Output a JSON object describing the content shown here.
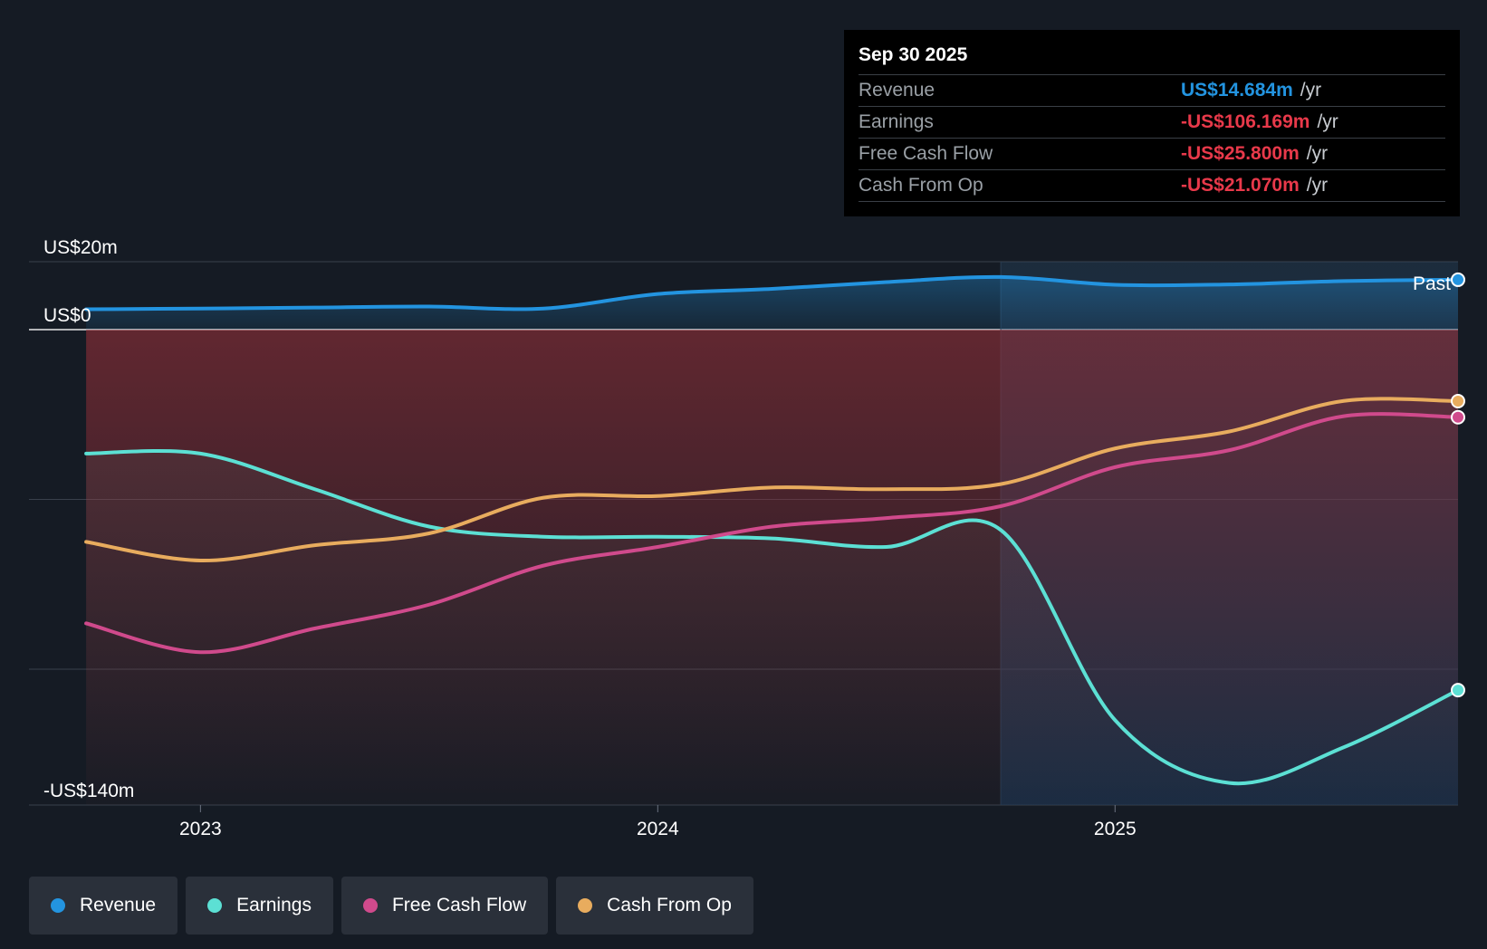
{
  "chart_data": {
    "type": "line",
    "x_unit": "year",
    "xlim": [
      2022.625,
      2025.75
    ],
    "ylim": [
      -140,
      20
    ],
    "y_tick_labels": [
      {
        "value": 20,
        "label": "US$20m"
      },
      {
        "value": 0,
        "label": "US$0"
      },
      {
        "value": -140,
        "label": "-US$140m"
      }
    ],
    "gridlines": [
      20,
      0,
      -50,
      -100,
      -140
    ],
    "x_ticks": [
      {
        "value": 2023.0,
        "label": "2023"
      },
      {
        "value": 2024.0,
        "label": "2024"
      },
      {
        "value": 2025.0,
        "label": "2025"
      }
    ],
    "past_divider_x": 2024.75,
    "past_label": "Past",
    "series": [
      {
        "name": "Revenue",
        "color": "#2394e0",
        "points": [
          [
            2022.75,
            6
          ],
          [
            2023.0,
            6.2
          ],
          [
            2023.25,
            6.5
          ],
          [
            2023.5,
            6.8
          ],
          [
            2023.75,
            6.2
          ],
          [
            2024.0,
            10.5
          ],
          [
            2024.25,
            12
          ],
          [
            2024.5,
            14
          ],
          [
            2024.75,
            15.5
          ],
          [
            2025.0,
            13.2
          ],
          [
            2025.25,
            13.3
          ],
          [
            2025.5,
            14.3
          ],
          [
            2025.75,
            14.684
          ]
        ]
      },
      {
        "name": "Earnings",
        "color": "#5ce0d4",
        "points": [
          [
            2022.75,
            -36.5
          ],
          [
            2023.0,
            -36.5
          ],
          [
            2023.25,
            -47
          ],
          [
            2023.5,
            -58
          ],
          [
            2023.75,
            -61
          ],
          [
            2024.0,
            -61
          ],
          [
            2024.25,
            -61.5
          ],
          [
            2024.5,
            -64
          ],
          [
            2024.75,
            -59
          ],
          [
            2025.0,
            -115
          ],
          [
            2025.25,
            -133.5
          ],
          [
            2025.5,
            -123
          ],
          [
            2025.75,
            -106.169
          ]
        ]
      },
      {
        "name": "Free Cash Flow",
        "color": "#d04a8c",
        "points": [
          [
            2022.75,
            -86.5
          ],
          [
            2023.0,
            -95
          ],
          [
            2023.25,
            -88
          ],
          [
            2023.5,
            -81
          ],
          [
            2023.75,
            -69.5
          ],
          [
            2024.0,
            -64
          ],
          [
            2024.25,
            -58
          ],
          [
            2024.5,
            -55.5
          ],
          [
            2024.75,
            -52
          ],
          [
            2025.0,
            -40.5
          ],
          [
            2025.25,
            -35.5
          ],
          [
            2025.5,
            -25.5
          ],
          [
            2025.75,
            -25.8
          ]
        ]
      },
      {
        "name": "Cash From Op",
        "color": "#e8ac5e",
        "points": [
          [
            2022.75,
            -62.5
          ],
          [
            2023.0,
            -68
          ],
          [
            2023.25,
            -63.5
          ],
          [
            2023.5,
            -60
          ],
          [
            2023.75,
            -49.5
          ],
          [
            2024.0,
            -49
          ],
          [
            2024.25,
            -46.5
          ],
          [
            2024.5,
            -47
          ],
          [
            2024.75,
            -45.5
          ],
          [
            2025.0,
            -35
          ],
          [
            2025.25,
            -30
          ],
          [
            2025.5,
            -21
          ],
          [
            2025.75,
            -21.07
          ]
        ]
      }
    ]
  },
  "tooltip": {
    "date": "Sep 30 2025",
    "rows": [
      {
        "name": "Revenue",
        "value": "US$14.684m",
        "unit": "/yr",
        "color": "#2394e0"
      },
      {
        "name": "Earnings",
        "value": "-US$106.169m",
        "unit": "/yr",
        "color": "#e8394a"
      },
      {
        "name": "Free Cash Flow",
        "value": "-US$25.800m",
        "unit": "/yr",
        "color": "#e8394a"
      },
      {
        "name": "Cash From Op",
        "value": "-US$21.070m",
        "unit": "/yr",
        "color": "#e8394a"
      }
    ]
  },
  "legend": [
    {
      "label": "Revenue",
      "color": "#2394e0"
    },
    {
      "label": "Earnings",
      "color": "#5ce0d4"
    },
    {
      "label": "Free Cash Flow",
      "color": "#d04a8c"
    },
    {
      "label": "Cash From Op",
      "color": "#e8ac5e"
    }
  ]
}
